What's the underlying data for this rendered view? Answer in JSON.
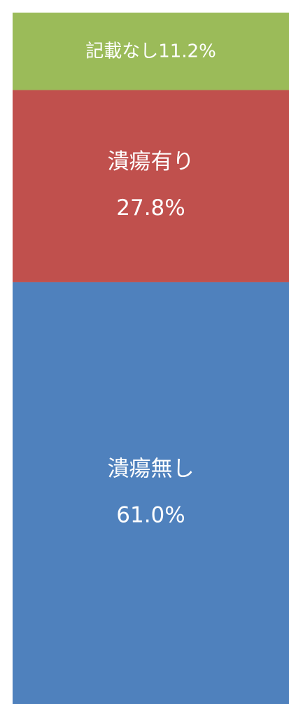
{
  "chart_data": {
    "type": "bar",
    "stacked": true,
    "categories": [
      null
    ],
    "series": [
      {
        "name": "潰瘍無し",
        "color": "#4f81bd",
        "values": [
          61.0
        ],
        "value_labels": [
          "61.0%"
        ]
      },
      {
        "name": "潰瘍有り",
        "color": "#c0504d",
        "values": [
          27.8
        ],
        "value_labels": [
          "27.8%"
        ]
      },
      {
        "name": "記載なし",
        "color": "#9bbb59",
        "values": [
          11.2
        ],
        "value_labels": [
          "11.2%"
        ]
      }
    ]
  }
}
